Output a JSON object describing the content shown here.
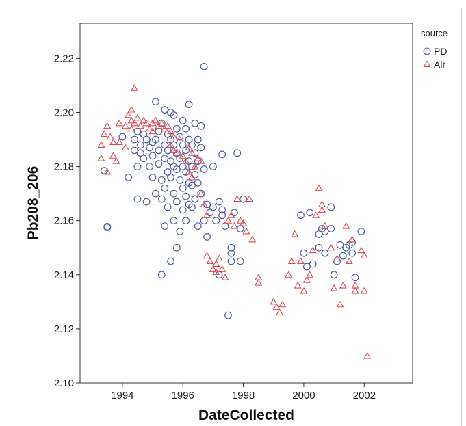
{
  "chart_data": {
    "type": "scatter",
    "xlabel": "DateCollected",
    "ylabel": "Pb208_206",
    "xlim": [
      1992.6,
      2003.6
    ],
    "ylim": [
      2.1,
      2.233
    ],
    "x_ticks": [
      "1994",
      "1996",
      "1998",
      "2000",
      "2002"
    ],
    "x_tick_values": [
      1994,
      1996,
      1998,
      2000,
      2002
    ],
    "y_ticks": [
      "2.10",
      "2.12",
      "2.14",
      "2.16",
      "2.18",
      "2.20",
      "2.22"
    ],
    "y_tick_values": [
      2.1,
      2.12,
      2.14,
      2.16,
      2.18,
      2.2,
      2.22
    ],
    "grid": false,
    "legend": {
      "title": "source",
      "placement": "top-right"
    },
    "series": [
      {
        "name": "PD",
        "marker": "circle",
        "color": "#4a5ea8",
        "points": [
          [
            1993.4,
            2.1785
          ],
          [
            1993.5,
            2.1578
          ],
          [
            1993.5,
            2.1575
          ],
          [
            1994.0,
            2.191
          ],
          [
            1994.2,
            2.176
          ],
          [
            1994.4,
            2.19
          ],
          [
            1994.4,
            2.186
          ],
          [
            1994.5,
            2.193
          ],
          [
            1994.5,
            2.18
          ],
          [
            1994.5,
            2.168
          ],
          [
            1994.6,
            2.188
          ],
          [
            1994.6,
            2.185
          ],
          [
            1994.7,
            2.192
          ],
          [
            1994.7,
            2.183
          ],
          [
            1994.8,
            2.19
          ],
          [
            1994.8,
            2.167
          ],
          [
            1994.9,
            2.187
          ],
          [
            1994.9,
            2.18
          ],
          [
            1995.0,
            2.189
          ],
          [
            1995.0,
            2.184
          ],
          [
            1995.0,
            2.176
          ],
          [
            1995.1,
            2.204
          ],
          [
            1995.1,
            2.19
          ],
          [
            1995.1,
            2.17
          ],
          [
            1995.2,
            2.193
          ],
          [
            1995.2,
            2.186
          ],
          [
            1995.2,
            2.181
          ],
          [
            1995.3,
            2.196
          ],
          [
            1995.3,
            2.175
          ],
          [
            1995.3,
            2.168
          ],
          [
            1995.3,
            2.14
          ],
          [
            1995.4,
            2.201
          ],
          [
            1995.4,
            2.188
          ],
          [
            1995.4,
            2.183
          ],
          [
            1995.4,
            2.172
          ],
          [
            1995.4,
            2.158
          ],
          [
            1995.5,
            2.192
          ],
          [
            1995.5,
            2.186
          ],
          [
            1995.5,
            2.178
          ],
          [
            1995.5,
            2.165
          ],
          [
            1995.6,
            2.2
          ],
          [
            1995.6,
            2.19
          ],
          [
            1995.6,
            2.182
          ],
          [
            1995.6,
            2.176
          ],
          [
            1995.6,
            2.145
          ],
          [
            1995.7,
            2.199
          ],
          [
            1995.7,
            2.188
          ],
          [
            1995.7,
            2.18
          ],
          [
            1995.7,
            2.17
          ],
          [
            1995.7,
            2.16
          ],
          [
            1995.8,
            2.194
          ],
          [
            1995.8,
            2.185
          ],
          [
            1995.8,
            2.179
          ],
          [
            1995.8,
            2.167
          ],
          [
            1995.8,
            2.15
          ],
          [
            1995.9,
            2.191
          ],
          [
            1995.9,
            2.183
          ],
          [
            1995.9,
            2.175
          ],
          [
            1995.9,
            2.156
          ],
          [
            1996.0,
            2.197
          ],
          [
            1996.0,
            2.188
          ],
          [
            1996.0,
            2.18
          ],
          [
            1996.0,
            2.172
          ],
          [
            1996.0,
            2.164
          ],
          [
            1996.1,
            2.194
          ],
          [
            1996.1,
            2.186
          ],
          [
            1996.1,
            2.178
          ],
          [
            1996.1,
            2.169
          ],
          [
            1996.1,
            2.16
          ],
          [
            1996.2,
            2.203
          ],
          [
            1996.2,
            2.19
          ],
          [
            1996.2,
            2.182
          ],
          [
            1996.2,
            2.174
          ],
          [
            1996.2,
            2.166
          ],
          [
            1996.3,
            2.188
          ],
          [
            1996.3,
            2.18
          ],
          [
            1996.3,
            2.173
          ],
          [
            1996.3,
            2.165
          ],
          [
            1996.4,
            2.196
          ],
          [
            1996.4,
            2.185
          ],
          [
            1996.4,
            2.177
          ],
          [
            1996.4,
            2.168
          ],
          [
            1996.5,
            2.19
          ],
          [
            1996.5,
            2.182
          ],
          [
            1996.5,
            2.174
          ],
          [
            1996.5,
            2.158
          ],
          [
            1996.6,
            2.195
          ],
          [
            1996.6,
            2.187
          ],
          [
            1996.6,
            2.17
          ],
          [
            1996.7,
            2.217
          ],
          [
            1996.7,
            2.179
          ],
          [
            1996.7,
            2.16
          ],
          [
            1996.8,
            2.166
          ],
          [
            1996.8,
            2.154
          ],
          [
            1996.9,
            2.163
          ],
          [
            1997.0,
            2.18
          ],
          [
            1997.0,
            2.165
          ],
          [
            1997.1,
            2.16
          ],
          [
            1997.2,
            2.14
          ],
          [
            1997.2,
            2.167
          ],
          [
            1997.3,
            2.1845
          ],
          [
            1997.3,
            2.164
          ],
          [
            1997.3,
            2.162
          ],
          [
            1997.4,
            2.158
          ],
          [
            1997.5,
            2.125
          ],
          [
            1997.6,
            2.15
          ],
          [
            1997.6,
            2.145
          ],
          [
            1997.6,
            2.148
          ],
          [
            1997.7,
            2.163
          ],
          [
            1997.8,
            2.185
          ],
          [
            1997.9,
            2.157
          ],
          [
            1997.9,
            2.145
          ],
          [
            1998.0,
            2.168
          ],
          [
            1999.9,
            2.162
          ],
          [
            2000.0,
            2.148
          ],
          [
            2000.1,
            2.143
          ],
          [
            2000.2,
            2.163
          ],
          [
            2000.3,
            2.144
          ],
          [
            2000.5,
            2.155
          ],
          [
            2000.5,
            2.15
          ],
          [
            2000.6,
            2.157
          ],
          [
            2000.7,
            2.156
          ],
          [
            2000.7,
            2.148
          ],
          [
            2000.9,
            2.165
          ],
          [
            2000.9,
            2.157
          ],
          [
            2001.0,
            2.14
          ],
          [
            2001.1,
            2.145
          ],
          [
            2001.2,
            2.151
          ],
          [
            2001.3,
            2.147
          ],
          [
            2001.4,
            2.15
          ],
          [
            2001.5,
            2.151
          ],
          [
            2001.6,
            2.148
          ],
          [
            2001.6,
            2.152
          ],
          [
            2001.7,
            2.139
          ],
          [
            2001.9,
            2.156
          ]
        ]
      },
      {
        "name": "Air",
        "marker": "triangle",
        "color": "#e0484e",
        "points": [
          [
            1993.3,
            2.188
          ],
          [
            1993.3,
            2.183
          ],
          [
            1993.4,
            2.192
          ],
          [
            1993.5,
            2.195
          ],
          [
            1993.5,
            2.178
          ],
          [
            1993.6,
            2.191
          ],
          [
            1993.7,
            2.189
          ],
          [
            1993.7,
            2.184
          ],
          [
            1993.8,
            2.182
          ],
          [
            1993.9,
            2.189
          ],
          [
            1993.9,
            2.196
          ],
          [
            1994.1,
            2.187
          ],
          [
            1994.1,
            2.195
          ],
          [
            1994.2,
            2.199
          ],
          [
            1994.3,
            2.201
          ],
          [
            1994.3,
            2.197
          ],
          [
            1994.3,
            2.194
          ],
          [
            1994.4,
            2.209
          ],
          [
            1994.4,
            2.196
          ],
          [
            1994.5,
            2.198
          ],
          [
            1994.6,
            2.195
          ],
          [
            1994.7,
            2.197
          ],
          [
            1994.8,
            2.196
          ],
          [
            1994.9,
            2.194
          ],
          [
            1995.0,
            2.196
          ],
          [
            1995.0,
            2.193
          ],
          [
            1995.1,
            2.197
          ],
          [
            1995.2,
            2.195
          ],
          [
            1995.3,
            2.196
          ],
          [
            1995.4,
            2.194
          ],
          [
            1995.5,
            2.195
          ],
          [
            1995.6,
            2.193
          ],
          [
            1995.6,
            2.188
          ],
          [
            1995.7,
            2.191
          ],
          [
            1995.7,
            2.186
          ],
          [
            1995.8,
            2.185
          ],
          [
            1995.9,
            2.19
          ],
          [
            1996.0,
            2.184
          ],
          [
            1996.1,
            2.182
          ],
          [
            1996.2,
            2.187
          ],
          [
            1996.2,
            2.178
          ],
          [
            1996.3,
            2.185
          ],
          [
            1996.3,
            2.176
          ],
          [
            1996.4,
            2.18
          ],
          [
            1996.5,
            2.183
          ],
          [
            1996.6,
            2.182
          ],
          [
            1996.6,
            2.17
          ],
          [
            1996.7,
            2.166
          ],
          [
            1996.8,
            2.162
          ],
          [
            1996.8,
            2.147
          ],
          [
            1996.9,
            2.145
          ],
          [
            1997.0,
            2.142
          ],
          [
            1997.1,
            2.144
          ],
          [
            1997.1,
            2.141
          ],
          [
            1997.2,
            2.146
          ],
          [
            1997.3,
            2.142
          ],
          [
            1997.4,
            2.139
          ],
          [
            1997.5,
            2.16
          ],
          [
            1997.6,
            2.162
          ],
          [
            1997.7,
            2.158
          ],
          [
            1997.8,
            2.168
          ],
          [
            1997.9,
            2.16
          ],
          [
            1998.0,
            2.159
          ],
          [
            1998.1,
            2.156
          ],
          [
            1998.2,
            2.168
          ],
          [
            1998.3,
            2.153
          ],
          [
            1998.5,
            2.139
          ],
          [
            1998.5,
            2.137
          ],
          [
            1999.0,
            2.13
          ],
          [
            1999.1,
            2.128
          ],
          [
            1999.2,
            2.126
          ],
          [
            1999.3,
            2.129
          ],
          [
            1999.5,
            2.14
          ],
          [
            1999.6,
            2.145
          ],
          [
            1999.7,
            2.155
          ],
          [
            1999.8,
            2.136
          ],
          [
            1999.9,
            2.145
          ],
          [
            2000.0,
            2.134
          ],
          [
            2000.1,
            2.138
          ],
          [
            2000.2,
            2.14
          ],
          [
            2000.3,
            2.149
          ],
          [
            2000.4,
            2.162
          ],
          [
            2000.5,
            2.172
          ],
          [
            2000.6,
            2.166
          ],
          [
            2000.6,
            2.164
          ],
          [
            2000.7,
            2.158
          ],
          [
            2000.9,
            2.15
          ],
          [
            2001.0,
            2.135
          ],
          [
            2001.1,
            2.146
          ],
          [
            2001.2,
            2.129
          ],
          [
            2001.3,
            2.136
          ],
          [
            2001.4,
            2.158
          ],
          [
            2001.5,
            2.145
          ],
          [
            2001.6,
            2.153
          ],
          [
            2001.7,
            2.134
          ],
          [
            2001.7,
            2.136
          ],
          [
            2001.9,
            2.149
          ],
          [
            2002.0,
            2.147
          ],
          [
            2002.0,
            2.134
          ],
          [
            2002.1,
            2.11
          ]
        ]
      }
    ]
  }
}
